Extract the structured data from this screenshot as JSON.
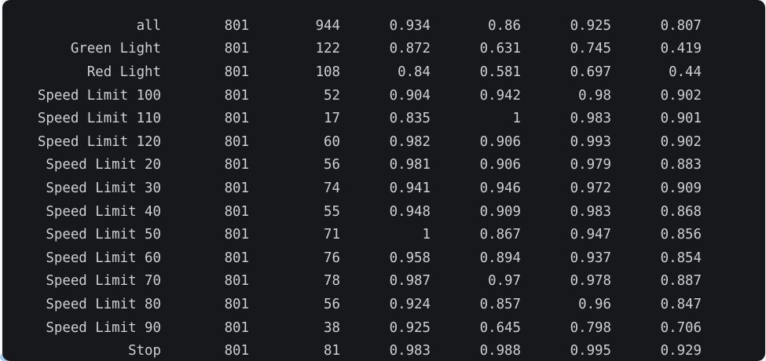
{
  "panel": {
    "kind": "terminal-output",
    "description": "validation metrics table"
  },
  "colors": {
    "panel_bg": "#17181c",
    "page_bg": "#ffffff",
    "text": "#d0d0d4",
    "corner_accent": "#9ec9e9"
  },
  "table": {
    "rows": [
      [
        "all",
        "801",
        "944",
        "0.934",
        "0.86",
        "0.925",
        "0.807"
      ],
      [
        "Green Light",
        "801",
        "122",
        "0.872",
        "0.631",
        "0.745",
        "0.419"
      ],
      [
        "Red Light",
        "801",
        "108",
        "0.84",
        "0.581",
        "0.697",
        "0.44"
      ],
      [
        "Speed Limit 100",
        "801",
        "52",
        "0.904",
        "0.942",
        "0.98",
        "0.902"
      ],
      [
        "Speed Limit 110",
        "801",
        "17",
        "0.835",
        "1",
        "0.983",
        "0.901"
      ],
      [
        "Speed Limit 120",
        "801",
        "60",
        "0.982",
        "0.906",
        "0.993",
        "0.902"
      ],
      [
        "Speed Limit 20",
        "801",
        "56",
        "0.981",
        "0.906",
        "0.979",
        "0.883"
      ],
      [
        "Speed Limit 30",
        "801",
        "74",
        "0.941",
        "0.946",
        "0.972",
        "0.909"
      ],
      [
        "Speed Limit 40",
        "801",
        "55",
        "0.948",
        "0.909",
        "0.983",
        "0.868"
      ],
      [
        "Speed Limit 50",
        "801",
        "71",
        "1",
        "0.867",
        "0.947",
        "0.856"
      ],
      [
        "Speed Limit 60",
        "801",
        "76",
        "0.958",
        "0.894",
        "0.937",
        "0.854"
      ],
      [
        "Speed Limit 70",
        "801",
        "78",
        "0.987",
        "0.97",
        "0.978",
        "0.887"
      ],
      [
        "Speed Limit 80",
        "801",
        "56",
        "0.924",
        "0.857",
        "0.96",
        "0.847"
      ],
      [
        "Speed Limit 90",
        "801",
        "38",
        "0.925",
        "0.645",
        "0.798",
        "0.706"
      ],
      [
        "Stop",
        "801",
        "81",
        "0.983",
        "0.988",
        "0.995",
        "0.929"
      ]
    ]
  }
}
